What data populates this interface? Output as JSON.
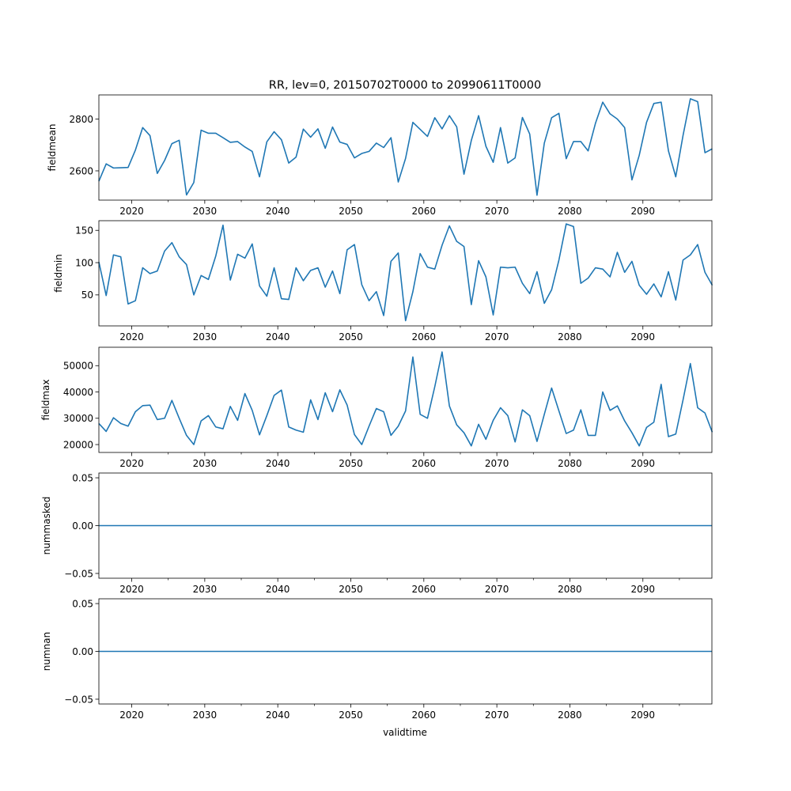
{
  "figure": {
    "title": "RR, lev=0, 20150702T0000 to 20990611T0000",
    "xlabel": "validtime",
    "line_color": "#1f77b4"
  },
  "chart_data": [
    {
      "type": "line",
      "ylabel": "fieldmean",
      "xlim": [
        2015.5,
        2099.45
      ],
      "ylim": [
        2487,
        2893
      ],
      "yticks": [
        2600,
        2800
      ],
      "ytick_labels": [
        "2600",
        "2800"
      ],
      "xticks": [
        2020,
        2030,
        2040,
        2050,
        2060,
        2070,
        2080,
        2090
      ],
      "xtick_labels": [
        "2020",
        "2030",
        "2040",
        "2050",
        "2060",
        "2070",
        "2080",
        "2090"
      ],
      "x_start": 2015.5,
      "x_step": 1,
      "values": [
        2560,
        2627,
        2611,
        2612,
        2613,
        2680,
        2767,
        2736,
        2590,
        2640,
        2705,
        2718,
        2507,
        2555,
        2757,
        2745,
        2745,
        2728,
        2710,
        2713,
        2692,
        2675,
        2577,
        2712,
        2751,
        2720,
        2630,
        2653,
        2761,
        2730,
        2762,
        2687,
        2769,
        2711,
        2702,
        2650,
        2667,
        2675,
        2707,
        2690,
        2728,
        2557,
        2648,
        2787,
        2760,
        2733,
        2805,
        2762,
        2813,
        2770,
        2587,
        2717,
        2813,
        2695,
        2633,
        2767,
        2630,
        2650,
        2806,
        2742,
        2506,
        2707,
        2805,
        2822,
        2647,
        2713,
        2713,
        2677,
        2783,
        2865,
        2820,
        2800,
        2767,
        2565,
        2660,
        2787,
        2860,
        2865,
        2677,
        2577,
        2737,
        2878,
        2867,
        2670,
        2685
      ]
    },
    {
      "type": "line",
      "ylabel": "fieldmin",
      "xlim": [
        2015.5,
        2099.45
      ],
      "ylim": [
        2,
        165
      ],
      "yticks": [
        50,
        100,
        150
      ],
      "ytick_labels": [
        "50",
        "100",
        "150"
      ],
      "xticks": [
        2020,
        2030,
        2040,
        2050,
        2060,
        2070,
        2080,
        2090
      ],
      "xtick_labels": [
        "2020",
        "2030",
        "2040",
        "2050",
        "2060",
        "2070",
        "2080",
        "2090"
      ],
      "x_start": 2015.5,
      "x_step": 1,
      "values": [
        101,
        49,
        112,
        109,
        36,
        41,
        92,
        83,
        87,
        118,
        131,
        109,
        97,
        50,
        80,
        74,
        110,
        158,
        73,
        113,
        107,
        129,
        64,
        48,
        92,
        44,
        43,
        92,
        72,
        88,
        92,
        62,
        87,
        52,
        120,
        128,
        66,
        41,
        55,
        18,
        102,
        115,
        10,
        55,
        114,
        93,
        90,
        127,
        157,
        133,
        125,
        35,
        103,
        78,
        19,
        93,
        92,
        93,
        68,
        52,
        86,
        37,
        58,
        104,
        160,
        156,
        68,
        76,
        92,
        90,
        78,
        116,
        85,
        102,
        65,
        51,
        67,
        47,
        86,
        42,
        104,
        112,
        128,
        85,
        65
      ]
    },
    {
      "type": "line",
      "ylabel": "fieldmax",
      "xlim": [
        2015.5,
        2099.45
      ],
      "ylim": [
        17000,
        57000
      ],
      "yticks": [
        20000,
        30000,
        40000,
        50000
      ],
      "ytick_labels": [
        "20000",
        "30000",
        "40000",
        "50000"
      ],
      "xticks": [
        2020,
        2030,
        2040,
        2050,
        2060,
        2070,
        2080,
        2090
      ],
      "xtick_labels": [
        "2020",
        "2030",
        "2040",
        "2050",
        "2060",
        "2070",
        "2080",
        "2090"
      ],
      "x_start": 2015.5,
      "x_step": 1,
      "values": [
        28000,
        25000,
        30200,
        28000,
        27000,
        32500,
        34800,
        35000,
        29500,
        30000,
        36800,
        30000,
        23500,
        20000,
        29000,
        31000,
        26700,
        26000,
        34500,
        29200,
        39400,
        33000,
        23700,
        31000,
        38700,
        40700,
        26700,
        25500,
        24700,
        37000,
        29500,
        39700,
        32500,
        40800,
        35000,
        23800,
        20000,
        27000,
        33700,
        32500,
        23500,
        27000,
        32800,
        53300,
        31500,
        30000,
        42000,
        55200,
        34700,
        27500,
        24500,
        19500,
        27700,
        22000,
        29200,
        34000,
        31000,
        21000,
        33200,
        31000,
        21200,
        31500,
        41500,
        32800,
        24200,
        25500,
        33200,
        23500,
        23500,
        40000,
        33000,
        34700,
        29000,
        24500,
        19500,
        26500,
        28500,
        42900,
        23000,
        24000,
        37000,
        50800,
        34000,
        32000,
        24700
      ]
    },
    {
      "type": "line",
      "ylabel": "nummasked",
      "xlim": [
        2015.5,
        2099.45
      ],
      "ylim": [
        -0.055,
        0.055
      ],
      "yticks": [
        -0.05,
        0.0,
        0.05
      ],
      "ytick_labels": [
        "−0.05",
        "0.00",
        "0.05"
      ],
      "xticks": [
        2020,
        2030,
        2040,
        2050,
        2060,
        2070,
        2080,
        2090
      ],
      "xtick_labels": [
        "2020",
        "2030",
        "2040",
        "2050",
        "2060",
        "2070",
        "2080",
        "2090"
      ],
      "x": [
        2015.5,
        2099.45
      ],
      "values": [
        0,
        0
      ]
    },
    {
      "type": "line",
      "ylabel": "numnan",
      "xlim": [
        2015.5,
        2099.45
      ],
      "ylim": [
        -0.055,
        0.055
      ],
      "yticks": [
        -0.05,
        0.0,
        0.05
      ],
      "ytick_labels": [
        "−0.05",
        "0.00",
        "0.05"
      ],
      "xticks": [
        2020,
        2030,
        2040,
        2050,
        2060,
        2070,
        2080,
        2090
      ],
      "xtick_labels": [
        "2020",
        "2030",
        "2040",
        "2050",
        "2060",
        "2070",
        "2080",
        "2090"
      ],
      "x": [
        2015.5,
        2099.45
      ],
      "values": [
        0,
        0
      ]
    }
  ]
}
